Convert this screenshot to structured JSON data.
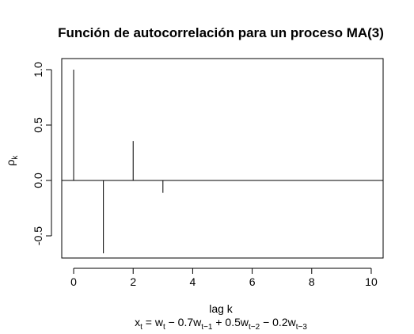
{
  "chart_data": {
    "type": "bar",
    "title": "Función de autocorrelación para un proceso MA(3)",
    "xlabel": "lag k",
    "ylabel": {
      "main": "ρ",
      "sub": "k"
    },
    "subtitle_formula": {
      "x": "x",
      "x_sub": "t",
      "eq": " = ",
      "w1": "w",
      "w1_sub": "t",
      "op1": " − 0.7",
      "w2": "w",
      "w2_sub": "t−1",
      "op2": " + 0.5",
      "w3": "w",
      "w3_sub": "t−2",
      "op3": " − 0.2",
      "w4": "w",
      "w4_sub": "t−3"
    },
    "x": [
      0,
      1,
      2,
      3,
      4,
      5,
      6,
      7,
      8,
      9,
      10
    ],
    "values": [
      1.0,
      -0.6575,
      0.3562,
      -0.1119,
      0,
      0,
      0,
      0,
      0,
      0,
      0
    ],
    "xlim": [
      -0.4,
      10.4
    ],
    "ylim": [
      -0.7,
      1.1
    ],
    "xticks": [
      "0",
      "2",
      "4",
      "6",
      "8",
      "10"
    ],
    "yticks": [
      "-0.5",
      "0.0",
      "0.5",
      "1.0"
    ],
    "hline": 0,
    "grid": false
  }
}
